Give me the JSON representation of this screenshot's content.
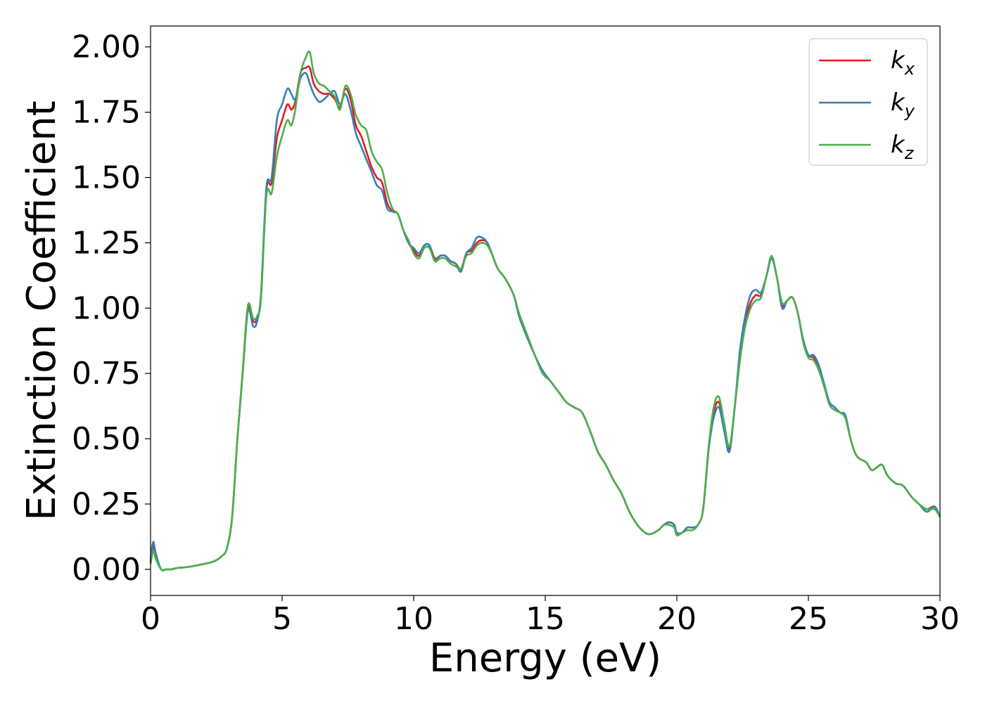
{
  "chart_data": {
    "type": "line",
    "xlabel": "Energy (eV)",
    "ylabel": "Extinction Coefficient",
    "xlim": [
      0,
      30
    ],
    "ylim": [
      -0.1,
      2.08
    ],
    "xticks": [
      0,
      5,
      10,
      15,
      20,
      25,
      30
    ],
    "xtick_labels": [
      "0",
      "5",
      "10",
      "15",
      "20",
      "25",
      "30"
    ],
    "yticks": [
      0.0,
      0.25,
      0.5,
      0.75,
      1.0,
      1.25,
      1.5,
      1.75,
      2.0
    ],
    "ytick_labels": [
      "0.00",
      "0.25",
      "0.50",
      "0.75",
      "1.00",
      "1.25",
      "1.50",
      "1.75",
      "2.00"
    ],
    "grid": false,
    "legend_position": "top-right",
    "series": [
      {
        "name": "k_x",
        "label_main": "k",
        "label_sub": "x",
        "color": "#e41a1c",
        "x": [
          0,
          0.1,
          0.2,
          0.4,
          0.6,
          0.8,
          1.0,
          1.5,
          2.0,
          2.4,
          2.7,
          2.9,
          3.1,
          3.3,
          3.5,
          3.7,
          3.9,
          4.05,
          4.2,
          4.4,
          4.6,
          4.8,
          5.0,
          5.2,
          5.35,
          5.5,
          5.7,
          5.9,
          6.05,
          6.2,
          6.4,
          6.6,
          6.8,
          7.0,
          7.2,
          7.4,
          7.6,
          7.8,
          8.0,
          8.2,
          8.4,
          8.6,
          8.8,
          9.0,
          9.2,
          9.4,
          9.6,
          9.8,
          10.0,
          10.2,
          10.4,
          10.6,
          10.8,
          11.0,
          11.2,
          11.4,
          11.6,
          11.8,
          12.0,
          12.2,
          12.4,
          12.6,
          12.8,
          13.0,
          13.2,
          13.5,
          13.8,
          14.0,
          14.3,
          14.6,
          14.9,
          15.2,
          15.5,
          15.8,
          16.1,
          16.4,
          16.7,
          17.0,
          17.3,
          17.6,
          17.9,
          18.2,
          18.5,
          18.8,
          19.0,
          19.3,
          19.5,
          19.7,
          19.9,
          20.0,
          20.2,
          20.4,
          20.6,
          20.8,
          21.0,
          21.2,
          21.4,
          21.6,
          21.8,
          22.0,
          22.2,
          22.4,
          22.6,
          22.8,
          23.0,
          23.2,
          23.4,
          23.6,
          23.8,
          24.0,
          24.2,
          24.4,
          24.6,
          24.8,
          25.0,
          25.2,
          25.4,
          25.6,
          25.8,
          26.0,
          26.2,
          26.4,
          26.6,
          26.8,
          27.0,
          27.2,
          27.4,
          27.6,
          27.8,
          28.0,
          28.3,
          28.6,
          28.9,
          29.2,
          29.5,
          29.8,
          30.0
        ],
        "y": [
          0.03,
          0.09,
          0.05,
          0.0,
          0.0,
          0.0,
          0.005,
          0.01,
          0.02,
          0.03,
          0.05,
          0.08,
          0.2,
          0.5,
          0.75,
          1.0,
          0.95,
          0.96,
          1.05,
          1.45,
          1.48,
          1.65,
          1.72,
          1.78,
          1.76,
          1.79,
          1.9,
          1.92,
          1.92,
          1.86,
          1.83,
          1.82,
          1.82,
          1.8,
          1.77,
          1.84,
          1.8,
          1.7,
          1.66,
          1.6,
          1.54,
          1.5,
          1.48,
          1.4,
          1.37,
          1.36,
          1.3,
          1.25,
          1.22,
          1.2,
          1.24,
          1.24,
          1.19,
          1.2,
          1.2,
          1.18,
          1.17,
          1.15,
          1.21,
          1.22,
          1.25,
          1.26,
          1.25,
          1.2,
          1.15,
          1.11,
          1.05,
          0.98,
          0.9,
          0.82,
          0.76,
          0.72,
          0.68,
          0.64,
          0.62,
          0.6,
          0.53,
          0.45,
          0.4,
          0.34,
          0.29,
          0.22,
          0.17,
          0.14,
          0.135,
          0.15,
          0.17,
          0.18,
          0.17,
          0.14,
          0.14,
          0.16,
          0.16,
          0.17,
          0.23,
          0.45,
          0.6,
          0.64,
          0.55,
          0.46,
          0.62,
          0.82,
          0.95,
          1.02,
          1.05,
          1.05,
          1.12,
          1.19,
          1.12,
          1.01,
          1.03,
          1.04,
          0.98,
          0.88,
          0.82,
          0.81,
          0.77,
          0.7,
          0.64,
          0.62,
          0.6,
          0.59,
          0.5,
          0.44,
          0.42,
          0.41,
          0.38,
          0.39,
          0.4,
          0.36,
          0.33,
          0.32,
          0.28,
          0.25,
          0.23,
          0.24,
          0.2
        ]
      },
      {
        "name": "k_y",
        "label_main": "k",
        "label_sub": "y",
        "color": "#377eb8",
        "x": [
          0,
          0.1,
          0.2,
          0.4,
          0.6,
          0.8,
          1.0,
          1.5,
          2.0,
          2.4,
          2.7,
          2.9,
          3.1,
          3.3,
          3.5,
          3.7,
          3.9,
          4.05,
          4.2,
          4.4,
          4.6,
          4.8,
          5.0,
          5.2,
          5.35,
          5.5,
          5.7,
          5.9,
          6.05,
          6.2,
          6.4,
          6.6,
          6.8,
          7.0,
          7.2,
          7.4,
          7.6,
          7.8,
          8.0,
          8.2,
          8.4,
          8.6,
          8.8,
          9.0,
          9.2,
          9.4,
          9.6,
          9.8,
          10.0,
          10.2,
          10.4,
          10.6,
          10.8,
          11.0,
          11.2,
          11.4,
          11.6,
          11.8,
          12.0,
          12.2,
          12.4,
          12.6,
          12.8,
          13.0,
          13.2,
          13.5,
          13.8,
          14.0,
          14.3,
          14.6,
          14.9,
          15.2,
          15.5,
          15.8,
          16.1,
          16.4,
          16.7,
          17.0,
          17.3,
          17.6,
          17.9,
          18.2,
          18.5,
          18.8,
          19.0,
          19.3,
          19.5,
          19.7,
          19.9,
          20.0,
          20.2,
          20.4,
          20.6,
          20.8,
          21.0,
          21.2,
          21.4,
          21.6,
          21.8,
          22.0,
          22.2,
          22.4,
          22.6,
          22.8,
          23.0,
          23.2,
          23.4,
          23.6,
          23.8,
          24.0,
          24.2,
          24.4,
          24.6,
          24.8,
          25.0,
          25.2,
          25.4,
          25.6,
          25.8,
          26.0,
          26.2,
          26.4,
          26.6,
          26.8,
          27.0,
          27.2,
          27.4,
          27.6,
          27.8,
          28.0,
          28.3,
          28.6,
          28.9,
          29.2,
          29.5,
          29.8,
          30.0
        ],
        "y": [
          0.04,
          0.105,
          0.06,
          0.0,
          0.0,
          0.0,
          0.005,
          0.01,
          0.02,
          0.03,
          0.05,
          0.08,
          0.2,
          0.5,
          0.75,
          0.99,
          0.93,
          0.95,
          1.06,
          1.46,
          1.5,
          1.72,
          1.78,
          1.84,
          1.82,
          1.8,
          1.88,
          1.9,
          1.86,
          1.82,
          1.79,
          1.8,
          1.82,
          1.83,
          1.78,
          1.82,
          1.76,
          1.67,
          1.62,
          1.57,
          1.52,
          1.47,
          1.45,
          1.38,
          1.37,
          1.36,
          1.3,
          1.25,
          1.23,
          1.21,
          1.24,
          1.24,
          1.18,
          1.2,
          1.2,
          1.18,
          1.17,
          1.14,
          1.21,
          1.23,
          1.27,
          1.27,
          1.25,
          1.2,
          1.15,
          1.11,
          1.05,
          0.97,
          0.89,
          0.82,
          0.76,
          0.72,
          0.68,
          0.64,
          0.62,
          0.6,
          0.53,
          0.45,
          0.4,
          0.34,
          0.29,
          0.22,
          0.17,
          0.14,
          0.135,
          0.15,
          0.17,
          0.18,
          0.17,
          0.14,
          0.14,
          0.16,
          0.16,
          0.17,
          0.23,
          0.45,
          0.58,
          0.62,
          0.53,
          0.45,
          0.62,
          0.84,
          0.97,
          1.05,
          1.07,
          1.06,
          1.12,
          1.19,
          1.12,
          1.0,
          1.03,
          1.04,
          0.98,
          0.88,
          0.82,
          0.82,
          0.78,
          0.71,
          0.64,
          0.62,
          0.6,
          0.59,
          0.5,
          0.44,
          0.42,
          0.41,
          0.38,
          0.39,
          0.4,
          0.36,
          0.33,
          0.32,
          0.28,
          0.25,
          0.22,
          0.24,
          0.2
        ]
      },
      {
        "name": "k_z",
        "label_main": "k",
        "label_sub": "z",
        "color": "#4daf4a",
        "x": [
          0,
          0.1,
          0.2,
          0.4,
          0.6,
          0.8,
          1.0,
          1.5,
          2.0,
          2.4,
          2.7,
          2.9,
          3.1,
          3.3,
          3.5,
          3.7,
          3.9,
          4.05,
          4.2,
          4.4,
          4.6,
          4.8,
          5.0,
          5.2,
          5.35,
          5.5,
          5.7,
          5.9,
          6.05,
          6.2,
          6.4,
          6.6,
          6.8,
          7.0,
          7.2,
          7.4,
          7.6,
          7.8,
          8.0,
          8.2,
          8.4,
          8.6,
          8.8,
          9.0,
          9.2,
          9.4,
          9.6,
          9.8,
          10.0,
          10.2,
          10.4,
          10.6,
          10.8,
          11.0,
          11.2,
          11.4,
          11.6,
          11.8,
          12.0,
          12.2,
          12.4,
          12.6,
          12.8,
          13.0,
          13.2,
          13.5,
          13.8,
          14.0,
          14.3,
          14.6,
          14.9,
          15.2,
          15.5,
          15.8,
          16.1,
          16.4,
          16.7,
          17.0,
          17.3,
          17.6,
          17.9,
          18.2,
          18.5,
          18.8,
          19.0,
          19.3,
          19.5,
          19.7,
          19.9,
          20.0,
          20.2,
          20.4,
          20.6,
          20.8,
          21.0,
          21.2,
          21.4,
          21.6,
          21.8,
          22.0,
          22.2,
          22.4,
          22.6,
          22.8,
          23.0,
          23.2,
          23.4,
          23.6,
          23.8,
          24.0,
          24.2,
          24.4,
          24.6,
          24.8,
          25.0,
          25.2,
          25.4,
          25.6,
          25.8,
          26.0,
          26.2,
          26.4,
          26.6,
          26.8,
          27.0,
          27.2,
          27.4,
          27.6,
          27.8,
          28.0,
          28.3,
          28.6,
          28.9,
          29.2,
          29.5,
          29.8,
          30.0
        ],
        "y": [
          0.02,
          0.07,
          0.04,
          0.0,
          0.0,
          0.0,
          0.005,
          0.01,
          0.02,
          0.03,
          0.05,
          0.08,
          0.2,
          0.5,
          0.76,
          1.01,
          0.96,
          0.97,
          1.04,
          1.43,
          1.44,
          1.58,
          1.66,
          1.72,
          1.7,
          1.76,
          1.9,
          1.96,
          1.98,
          1.9,
          1.86,
          1.85,
          1.83,
          1.81,
          1.76,
          1.85,
          1.82,
          1.74,
          1.7,
          1.68,
          1.6,
          1.56,
          1.53,
          1.44,
          1.38,
          1.36,
          1.3,
          1.26,
          1.21,
          1.19,
          1.23,
          1.23,
          1.18,
          1.19,
          1.19,
          1.17,
          1.16,
          1.15,
          1.2,
          1.21,
          1.24,
          1.25,
          1.24,
          1.2,
          1.15,
          1.11,
          1.05,
          0.98,
          0.9,
          0.82,
          0.75,
          0.72,
          0.68,
          0.64,
          0.62,
          0.6,
          0.53,
          0.45,
          0.4,
          0.34,
          0.29,
          0.22,
          0.17,
          0.14,
          0.135,
          0.15,
          0.17,
          0.17,
          0.16,
          0.13,
          0.14,
          0.15,
          0.15,
          0.17,
          0.23,
          0.46,
          0.62,
          0.66,
          0.56,
          0.47,
          0.62,
          0.8,
          0.93,
          1.0,
          1.03,
          1.04,
          1.12,
          1.2,
          1.12,
          1.02,
          1.03,
          1.04,
          0.98,
          0.87,
          0.81,
          0.8,
          0.76,
          0.7,
          0.63,
          0.61,
          0.6,
          0.58,
          0.5,
          0.44,
          0.42,
          0.41,
          0.38,
          0.39,
          0.4,
          0.36,
          0.33,
          0.32,
          0.28,
          0.25,
          0.23,
          0.23,
          0.2
        ]
      }
    ]
  }
}
